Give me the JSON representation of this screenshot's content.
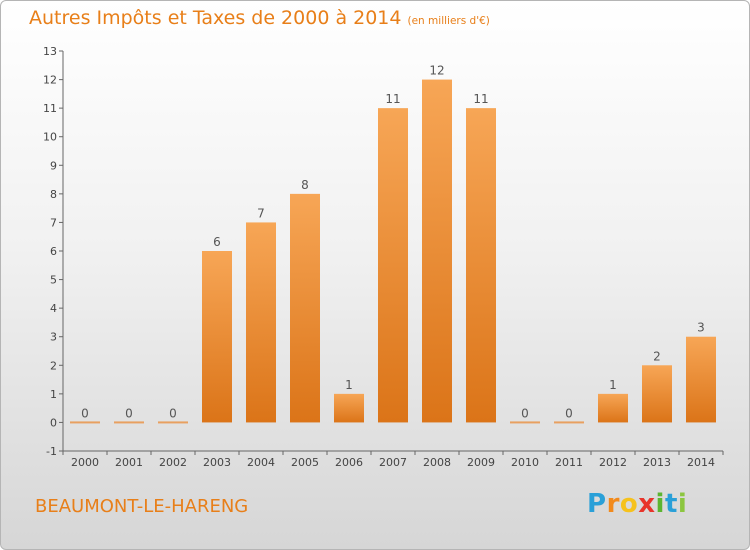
{
  "chart_data": {
    "type": "bar",
    "title": "Autres Impôts et Taxes de 2000 à 2014",
    "unit_label": "(en milliers d'€)",
    "categories": [
      "2000",
      "2001",
      "2002",
      "2003",
      "2004",
      "2005",
      "2006",
      "2007",
      "2008",
      "2009",
      "2010",
      "2011",
      "2012",
      "2013",
      "2014"
    ],
    "values": [
      0,
      0,
      0,
      6,
      7,
      8,
      1,
      11,
      12,
      11,
      0,
      0,
      1,
      2,
      3
    ],
    "data_labels": [
      "0",
      "0",
      "0",
      "6",
      "7",
      "8",
      "1",
      "11",
      "12",
      "11",
      "0",
      "0",
      "1",
      "2",
      "3"
    ],
    "ylim": [
      -1,
      13
    ],
    "yticks": [
      -1,
      0,
      1,
      2,
      3,
      4,
      5,
      6,
      7,
      8,
      9,
      10,
      11,
      12,
      13
    ],
    "grid": false,
    "bar_color": "#e8842a"
  },
  "commune": "BEAUMONT-LE-HARENG",
  "brand": {
    "letters": [
      "P",
      "r",
      "o",
      "x",
      "i",
      "t",
      "i"
    ],
    "colors": [
      "#2aa0d8",
      "#f28a1c",
      "#f6c21c",
      "#e8342b",
      "#5cb531",
      "#2aa0d8",
      "#8cc63f"
    ]
  }
}
